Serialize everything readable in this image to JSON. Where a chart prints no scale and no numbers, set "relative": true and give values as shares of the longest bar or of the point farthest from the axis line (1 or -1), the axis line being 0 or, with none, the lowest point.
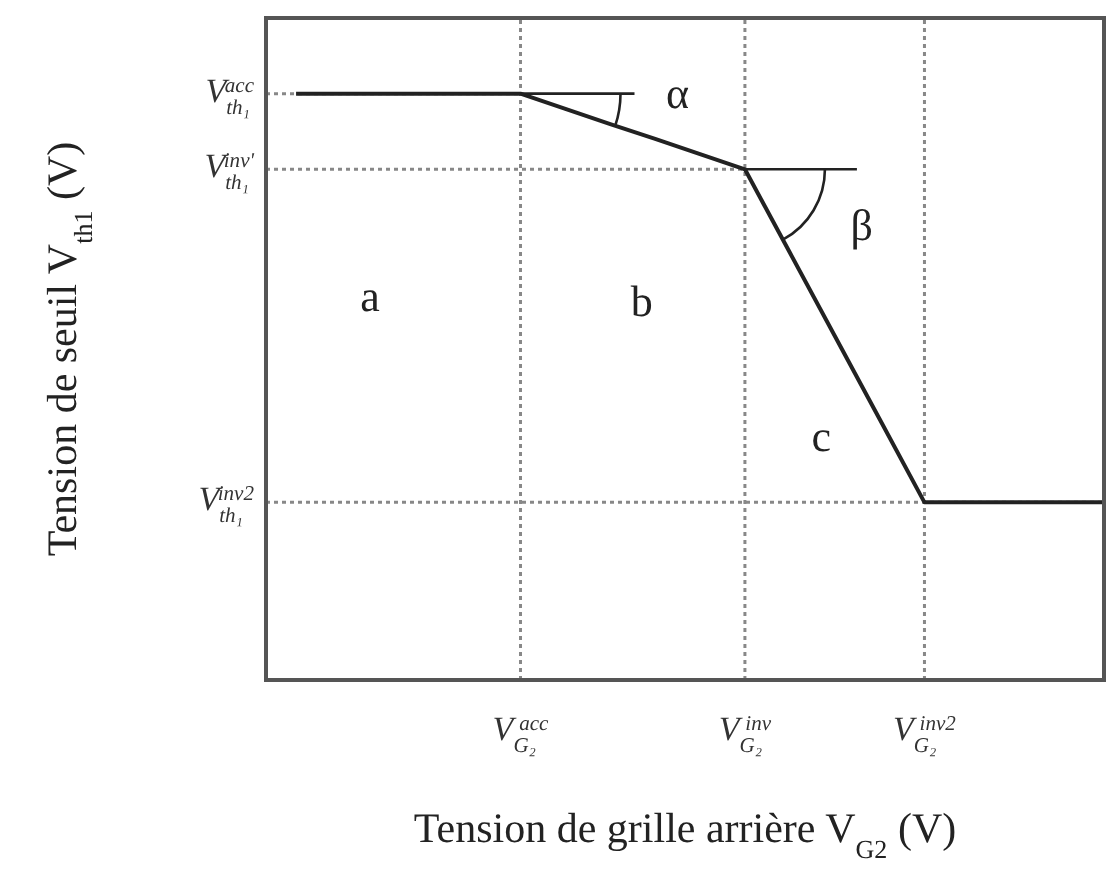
{
  "chart_data": {
    "type": "line",
    "relative": true,
    "xlabel": "Tension de grille arrière V$_{G2}$ (V)",
    "ylabel": "Tension de seuil V$_{th1}$ (V)",
    "categories": [
      null,
      null,
      null,
      null,
      null,
      "V$_{G₂}$$^{acc}$",
      null,
      null,
      null,
      null,
      "V$_{G₂}$$^{inv}$",
      null,
      null,
      null,
      "V$_{G₂}$$^{inv2}$",
      null,
      null,
      null,
      null
    ],
    "series": [
      {
        "color": "#222222",
        "values": [
          1,
          1,
          1,
          1,
          1,
          1,
          0.974,
          0.948,
          0.923,
          0.897,
          0.871,
          0.729,
          0.587,
          0.445,
          0.303,
          0.303,
          0.303,
          0.303,
          0.303
        ]
      }
    ],
    "ref_lines": [
      {
        "axis": "y",
        "value": 1,
        "label": "V$_{th₁}$$^{acc}$",
        "color": "#888888",
        "line_style": "dotted"
      },
      {
        "axis": "y",
        "value": 0.871,
        "label": "V$_{th₁}$$^{inv'}$",
        "color": "#888888",
        "line_style": "dotted"
      },
      {
        "axis": "y",
        "value": 0.303,
        "label": "V$_{th₁}$$^{inv2}$",
        "color": "#888888",
        "line_style": "dotted"
      },
      {
        "axis": "x",
        "value": "V$_{G₂}$$^{acc}$",
        "color": "#888888",
        "line_style": "dotted"
      },
      {
        "axis": "x",
        "value": "V$_{G₂}$$^{inv}$",
        "color": "#888888",
        "line_style": "dotted"
      },
      {
        "axis": "x",
        "value": "V$_{G₂}$$^{inv2}$",
        "color": "#888888",
        "line_style": "dotted"
      }
    ],
    "annotations": [
      "a",
      "b",
      "c",
      "α",
      "β"
    ],
    "grid": false,
    "marker": "none",
    "line_style": "solid"
  }
}
